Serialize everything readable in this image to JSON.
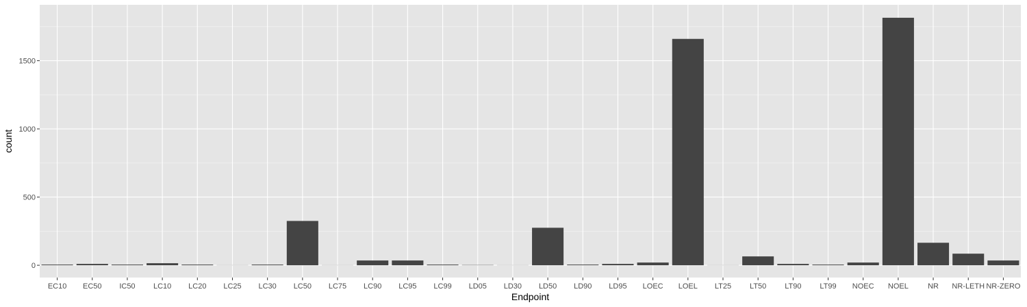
{
  "chart_data": {
    "type": "bar",
    "title": "",
    "xlabel": "Endpoint",
    "ylabel": "count",
    "categories": [
      "EC10",
      "EC50",
      "IC50",
      "LC10",
      "LC20",
      "LC25",
      "LC30",
      "LC50",
      "LC75",
      "LC90",
      "LC95",
      "LC99",
      "LD05",
      "LD30",
      "LD50",
      "LD90",
      "LD95",
      "LOEC",
      "LOEL",
      "LT25",
      "LT50",
      "LT90",
      "LT99",
      "NOEC",
      "NOEL",
      "NR",
      "NR-LETH",
      "NR-ZERO"
    ],
    "values": [
      5,
      10,
      5,
      15,
      5,
      1,
      5,
      325,
      1,
      35,
      35,
      5,
      2,
      1,
      275,
      5,
      10,
      20,
      1660,
      1,
      65,
      10,
      5,
      20,
      1815,
      165,
      85,
      35
    ],
    "yticks": [
      0,
      500,
      1000,
      1500
    ],
    "ylim": [
      -90,
      1910
    ],
    "grid": true,
    "colors": {
      "panel": "#e5e5e5",
      "grid_major": "#ffffff",
      "bar": "#444444",
      "tick_text": "#4d4d4d",
      "axis_text": "#000000"
    }
  }
}
